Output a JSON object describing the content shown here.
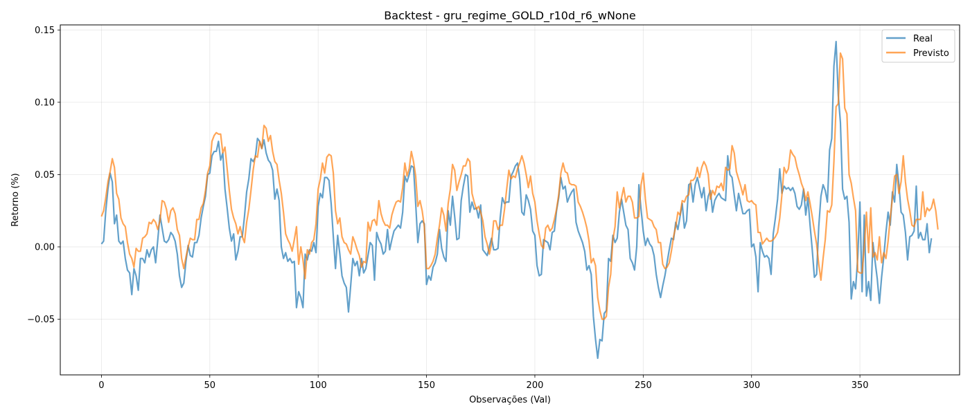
{
  "chart_data": {
    "type": "line",
    "title": "Backtest - gru_regime_GOLD_r10d_r6_wNone",
    "xlabel": "Observações (Val)",
    "ylabel": "Retorno (%)",
    "xlim": [
      -19,
      396
    ],
    "ylim": [
      -0.0885,
      0.1535
    ],
    "xticks": [
      0,
      50,
      100,
      150,
      200,
      250,
      300,
      350
    ],
    "xtick_labels": [
      "0",
      "50",
      "100",
      "150",
      "200",
      "250",
      "300",
      "350"
    ],
    "yticks": [
      -0.05,
      0.0,
      0.05,
      0.1,
      0.15
    ],
    "ytick_labels": [
      "−0.05",
      "0.00",
      "0.05",
      "0.10",
      "0.15"
    ],
    "grid": true,
    "legend_position": "top-right",
    "x_start": 0,
    "series": [
      {
        "name": "Real",
        "color": "#1f77b4",
        "opacity": 0.7,
        "values": [
          0.002,
          0.004,
          0.025,
          0.04,
          0.051,
          0.045,
          0.016,
          0.022,
          0.004,
          0.002,
          0.004,
          -0.008,
          -0.016,
          -0.018,
          -0.033,
          -0.015,
          -0.02,
          -0.03,
          -0.008,
          -0.008,
          -0.011,
          -0.002,
          -0.007,
          -0.002,
          0.0,
          -0.011,
          0.005,
          0.022,
          0.013,
          0.004,
          0.003,
          0.005,
          0.01,
          0.008,
          0.004,
          -0.005,
          -0.02,
          -0.028,
          -0.025,
          -0.01,
          0.001,
          -0.006,
          -0.007,
          0.003,
          0.003,
          0.008,
          0.02,
          0.028,
          0.035,
          0.05,
          0.051,
          0.063,
          0.066,
          0.066,
          0.073,
          0.06,
          0.065,
          0.04,
          0.027,
          0.013,
          0.004,
          0.009,
          -0.009,
          -0.003,
          0.007,
          0.007,
          0.021,
          0.038,
          0.047,
          0.061,
          0.059,
          0.062,
          0.075,
          0.073,
          0.068,
          0.074,
          0.065,
          0.06,
          0.058,
          0.053,
          0.033,
          0.04,
          0.032,
          0.0,
          -0.008,
          -0.004,
          -0.01,
          -0.008,
          -0.011,
          -0.01,
          -0.042,
          -0.031,
          -0.035,
          -0.042,
          -0.005,
          -0.009,
          -0.002,
          -0.003,
          0.003,
          -0.004,
          0.028,
          0.037,
          0.034,
          0.048,
          0.048,
          0.046,
          0.03,
          0.007,
          -0.015,
          0.008,
          -0.005,
          -0.02,
          -0.025,
          -0.028,
          -0.045,
          -0.027,
          -0.008,
          -0.013,
          -0.01,
          -0.02,
          -0.008,
          -0.018,
          -0.015,
          -0.006,
          0.003,
          0.001,
          -0.023,
          0.01,
          0.005,
          0.002,
          -0.005,
          -0.003,
          0.012,
          -0.002,
          0.005,
          0.011,
          0.013,
          0.015,
          0.013,
          0.024,
          0.049,
          0.045,
          0.05,
          0.056,
          0.055,
          0.03,
          0.003,
          0.016,
          0.018,
          0.016,
          -0.026,
          -0.02,
          -0.023,
          -0.014,
          -0.011,
          -0.005,
          0.012,
          -0.001,
          -0.007,
          -0.01,
          0.025,
          0.015,
          0.035,
          0.021,
          0.005,
          0.006,
          0.032,
          0.042,
          0.05,
          0.049,
          0.024,
          0.031,
          0.026,
          0.027,
          0.02,
          0.029,
          -0.002,
          -0.004,
          -0.006,
          0.0,
          0.006,
          -0.002,
          -0.002,
          -0.001,
          0.02,
          0.034,
          0.03,
          0.031,
          0.031,
          0.049,
          0.052,
          0.056,
          0.058,
          0.047,
          0.024,
          0.022,
          0.036,
          0.032,
          0.026,
          0.011,
          0.008,
          -0.013,
          -0.02,
          -0.019,
          0.005,
          0.004,
          0.003,
          -0.002,
          0.01,
          0.011,
          0.025,
          0.034,
          0.048,
          0.04,
          0.042,
          0.031,
          0.035,
          0.038,
          0.04,
          0.017,
          0.011,
          0.007,
          0.003,
          -0.003,
          -0.016,
          -0.013,
          -0.019,
          -0.048,
          -0.064,
          -0.077,
          -0.064,
          -0.065,
          -0.046,
          -0.044,
          -0.008,
          -0.01,
          0.008,
          0.003,
          0.006,
          0.024,
          0.033,
          0.024,
          0.015,
          0.012,
          -0.008,
          -0.011,
          -0.016,
          0.0,
          0.043,
          0.026,
          0.011,
          0.001,
          0.006,
          0.002,
          0.0,
          -0.006,
          -0.019,
          -0.028,
          -0.035,
          -0.027,
          -0.02,
          -0.011,
          -0.002,
          0.006,
          0.005,
          0.017,
          0.012,
          0.021,
          0.03,
          0.013,
          0.018,
          0.043,
          0.044,
          0.031,
          0.043,
          0.048,
          0.041,
          0.034,
          0.041,
          0.025,
          0.035,
          0.039,
          0.024,
          0.032,
          0.035,
          0.037,
          0.034,
          0.033,
          0.032,
          0.063,
          0.05,
          0.048,
          0.036,
          0.025,
          0.037,
          0.03,
          0.023,
          0.023,
          0.025,
          0.026,
          0.0,
          0.002,
          -0.007,
          -0.031,
          0.003,
          -0.003,
          -0.007,
          -0.006,
          -0.008,
          -0.019,
          0.009,
          0.02,
          0.033,
          0.054,
          0.037,
          0.042,
          0.04,
          0.041,
          0.039,
          0.041,
          0.037,
          0.028,
          0.026,
          0.029,
          0.04,
          0.022,
          0.034,
          0.015,
          -0.002,
          -0.021,
          -0.019,
          0.014,
          0.035,
          0.043,
          0.039,
          0.031,
          0.067,
          0.075,
          0.125,
          0.142,
          0.105,
          0.086,
          0.04,
          0.033,
          0.035,
          0.017,
          -0.036,
          -0.024,
          -0.029,
          -0.007,
          0.031,
          -0.031,
          0.022,
          -0.034,
          -0.024,
          -0.037,
          0.003,
          -0.01,
          -0.022,
          -0.039,
          -0.021,
          -0.007,
          0.01,
          0.024,
          0.015,
          0.038,
          0.031,
          0.057,
          0.043,
          0.024,
          0.022,
          0.01,
          -0.009,
          0.007,
          0.008,
          0.011,
          0.042,
          0.006,
          0.01,
          0.005,
          0.005,
          0.016,
          -0.004,
          0.006
        ]
      },
      {
        "name": "Previsto",
        "color": "#ff7f0e",
        "opacity": 0.7,
        "values": [
          0.021,
          0.025,
          0.034,
          0.045,
          0.052,
          0.061,
          0.055,
          0.037,
          0.033,
          0.02,
          0.016,
          0.014,
          0.003,
          -0.005,
          -0.008,
          -0.014,
          -0.001,
          -0.003,
          -0.003,
          0.006,
          0.007,
          0.009,
          0.017,
          0.016,
          0.019,
          0.017,
          0.012,
          0.018,
          0.032,
          0.031,
          0.026,
          0.017,
          0.025,
          0.027,
          0.023,
          0.012,
          0.008,
          -0.008,
          -0.015,
          -0.007,
          0.0,
          0.006,
          0.005,
          0.005,
          0.019,
          0.019,
          0.027,
          0.03,
          0.039,
          0.051,
          0.056,
          0.073,
          0.077,
          0.079,
          0.078,
          0.078,
          0.065,
          0.069,
          0.054,
          0.039,
          0.026,
          0.02,
          0.016,
          0.009,
          0.014,
          0.007,
          0.003,
          0.017,
          0.026,
          0.039,
          0.053,
          0.063,
          0.062,
          0.073,
          0.068,
          0.084,
          0.082,
          0.073,
          0.077,
          0.066,
          0.059,
          0.057,
          0.046,
          0.037,
          0.024,
          0.009,
          0.005,
          0.002,
          -0.003,
          0.005,
          0.014,
          -0.012,
          0.0,
          -0.009,
          -0.022,
          -0.002,
          -0.005,
          0.003,
          0.005,
          0.016,
          0.04,
          0.047,
          0.058,
          0.051,
          0.062,
          0.064,
          0.063,
          0.051,
          0.025,
          0.016,
          0.02,
          0.007,
          0.003,
          0.002,
          -0.002,
          -0.005,
          0.007,
          0.003,
          -0.002,
          -0.006,
          -0.014,
          -0.01,
          -0.011,
          0.017,
          0.011,
          0.018,
          0.019,
          0.015,
          0.032,
          0.023,
          0.018,
          0.015,
          0.015,
          0.013,
          0.022,
          0.027,
          0.031,
          0.032,
          0.031,
          0.041,
          0.058,
          0.049,
          0.054,
          0.066,
          0.059,
          0.049,
          0.028,
          0.032,
          0.025,
          0.014,
          -0.015,
          -0.015,
          -0.013,
          -0.01,
          -0.005,
          0.006,
          0.015,
          0.027,
          0.022,
          0.011,
          0.03,
          0.04,
          0.057,
          0.053,
          0.039,
          0.045,
          0.05,
          0.056,
          0.056,
          0.061,
          0.059,
          0.037,
          0.031,
          0.026,
          0.028,
          0.024,
          0.018,
          0.007,
          0.002,
          -0.005,
          0.002,
          0.018,
          0.018,
          0.012,
          0.015,
          0.015,
          0.026,
          0.04,
          0.053,
          0.047,
          0.049,
          0.048,
          0.054,
          0.058,
          0.063,
          0.058,
          0.05,
          0.041,
          0.049,
          0.037,
          0.031,
          0.018,
          0.009,
          0.001,
          -0.001,
          0.013,
          0.015,
          0.011,
          0.013,
          0.019,
          0.026,
          0.036,
          0.051,
          0.058,
          0.052,
          0.051,
          0.044,
          0.043,
          0.043,
          0.042,
          0.031,
          0.028,
          0.024,
          0.019,
          0.013,
          0.004,
          -0.011,
          -0.008,
          -0.013,
          -0.035,
          -0.044,
          -0.05,
          -0.05,
          -0.048,
          -0.028,
          -0.019,
          0.005,
          0.014,
          0.038,
          0.027,
          0.034,
          0.041,
          0.031,
          0.035,
          0.035,
          0.031,
          0.02,
          0.02,
          0.021,
          0.043,
          0.051,
          0.033,
          0.02,
          0.019,
          0.018,
          0.014,
          0.012,
          0.003,
          0.003,
          -0.012,
          -0.015,
          -0.014,
          -0.011,
          -0.003,
          0.007,
          0.014,
          0.024,
          0.022,
          0.032,
          0.031,
          0.035,
          0.036,
          0.046,
          0.046,
          0.048,
          0.055,
          0.048,
          0.055,
          0.059,
          0.056,
          0.05,
          0.033,
          0.039,
          0.036,
          0.042,
          0.041,
          0.044,
          0.039,
          0.055,
          0.053,
          0.054,
          0.07,
          0.065,
          0.052,
          0.047,
          0.042,
          0.036,
          0.043,
          0.032,
          0.031,
          0.032,
          0.03,
          0.029,
          0.01,
          0.01,
          0.002,
          0.004,
          0.006,
          0.004,
          0.004,
          0.005,
          0.007,
          0.01,
          0.02,
          0.036,
          0.055,
          0.051,
          0.054,
          0.067,
          0.064,
          0.062,
          0.055,
          0.05,
          0.044,
          0.04,
          0.032,
          0.038,
          0.03,
          0.021,
          0.011,
          0.002,
          -0.012,
          -0.023,
          -0.008,
          0.005,
          0.025,
          0.024,
          0.029,
          0.059,
          0.097,
          0.099,
          0.134,
          0.13,
          0.096,
          0.092,
          0.05,
          0.044,
          0.034,
          0.025,
          -0.017,
          -0.018,
          -0.018,
          0.0,
          0.024,
          -0.004,
          0.027,
          -0.007,
          -0.004,
          -0.009,
          0.007,
          -0.011,
          -0.004,
          -0.008,
          0.004,
          0.02,
          0.034,
          0.049,
          0.05,
          0.037,
          0.045,
          0.063,
          0.045,
          0.033,
          0.025,
          0.015,
          0.014,
          0.019,
          0.019,
          0.019,
          0.038,
          0.021,
          0.027,
          0.025,
          0.027,
          0.033,
          0.025,
          0.012
        ]
      }
    ]
  }
}
